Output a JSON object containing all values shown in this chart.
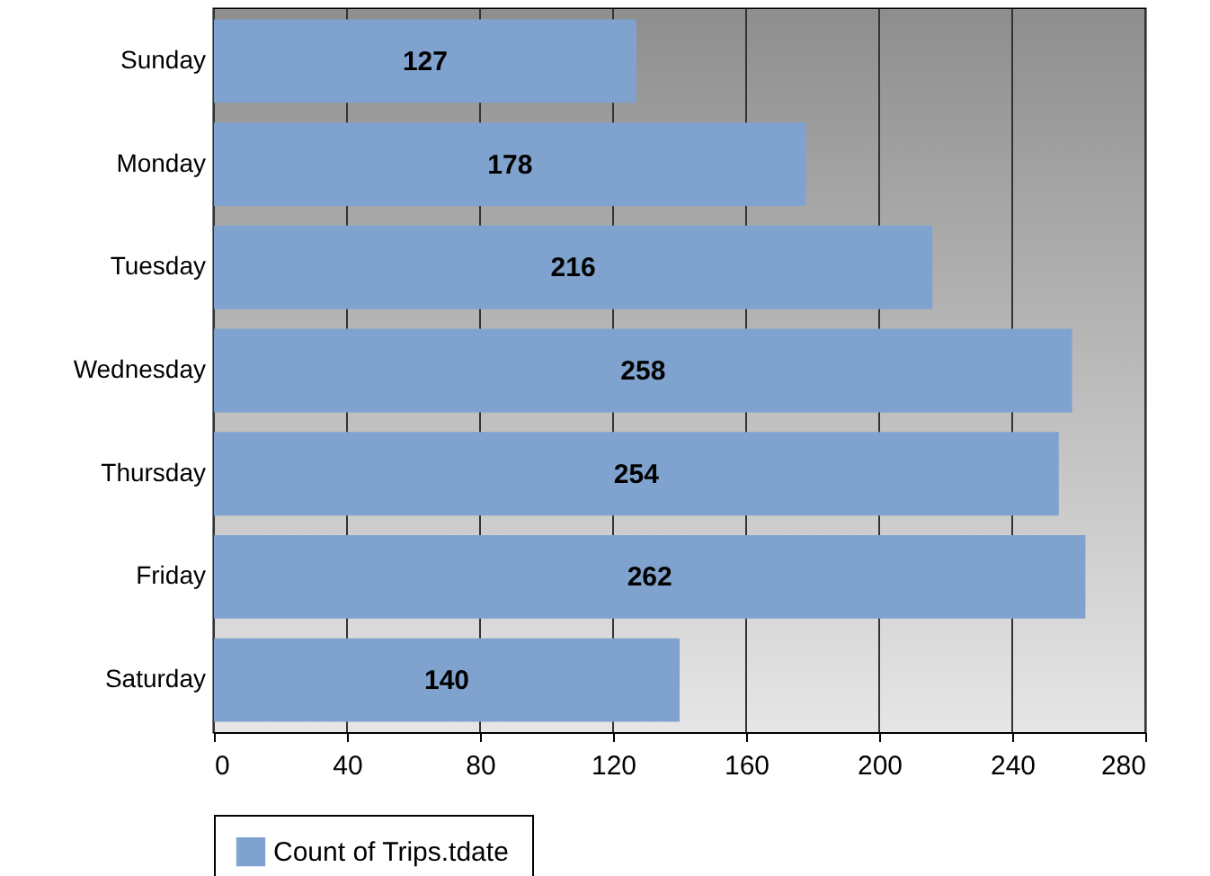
{
  "chart_data": {
    "type": "bar",
    "orientation": "horizontal",
    "categories": [
      "Sunday",
      "Monday",
      "Tuesday",
      "Wednesday",
      "Thursday",
      "Friday",
      "Saturday"
    ],
    "series": [
      {
        "name": "Count of Trips.tdate",
        "color": "#7fa3ce",
        "values": [
          127,
          178,
          216,
          258,
          254,
          262,
          140
        ]
      }
    ],
    "xlim": [
      0,
      280
    ],
    "xticks": [
      0,
      40,
      80,
      120,
      160,
      200,
      240,
      280
    ],
    "grid": "x",
    "legend": "bottom",
    "data_labels": true
  }
}
